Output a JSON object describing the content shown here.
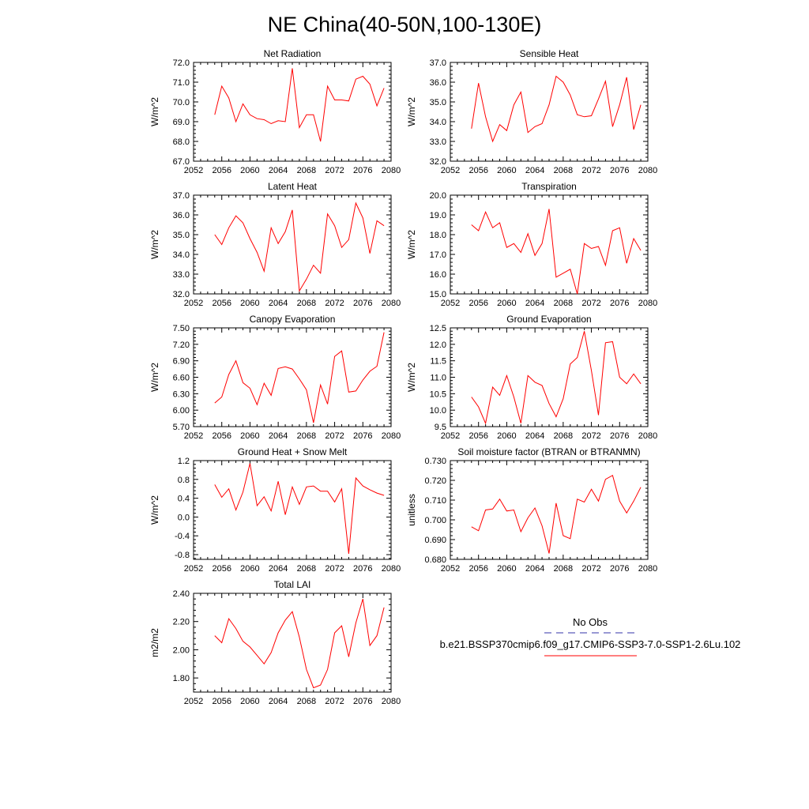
{
  "figure": {
    "title": "NE China(40-50N,100-130E)",
    "line_color": "#ff0000",
    "obs_line_color": "#3333aa"
  },
  "legend": {
    "obs_label": "No Obs",
    "run_label": "b.e21.BSSP370cmip6.f09_g17.CMIP6-SSP3-7.0-SSP1-2.6Lu.102"
  },
  "chart_data": [
    {
      "type": "line",
      "title": "Net Radiation",
      "ylabel": "W/m^2",
      "xlim": [
        2052,
        2080
      ],
      "ylim": [
        67.0,
        72.0
      ],
      "xticks": [
        2052,
        2056,
        2060,
        2064,
        2068,
        2072,
        2076,
        2080
      ],
      "yticks": [
        "67.0",
        "68.0",
        "69.0",
        "70.0",
        "71.0",
        "72.0"
      ],
      "x": [
        2055,
        2056,
        2057,
        2058,
        2059,
        2060,
        2061,
        2062,
        2063,
        2064,
        2065,
        2066,
        2067,
        2068,
        2069,
        2070,
        2071,
        2072,
        2073,
        2074,
        2075,
        2076,
        2077,
        2078,
        2079
      ],
      "series": [
        {
          "values": [
            69.35,
            70.8,
            70.2,
            69.0,
            69.9,
            69.35,
            69.15,
            69.1,
            68.9,
            69.05,
            69.0,
            71.7,
            68.7,
            69.35,
            69.35,
            68.0,
            70.8,
            70.1,
            70.1,
            70.05,
            71.15,
            71.3,
            70.9,
            69.8,
            70.7
          ]
        }
      ]
    },
    {
      "type": "line",
      "title": "Sensible Heat",
      "ylabel": "W/m^2",
      "xlim": [
        2052,
        2080
      ],
      "ylim": [
        32.0,
        37.0
      ],
      "xticks": [
        2052,
        2056,
        2060,
        2064,
        2068,
        2072,
        2076,
        2080
      ],
      "yticks": [
        "32.0",
        "33.0",
        "34.0",
        "35.0",
        "36.0",
        "37.0"
      ],
      "x": [
        2055,
        2056,
        2057,
        2058,
        2059,
        2060,
        2061,
        2062,
        2063,
        2064,
        2065,
        2066,
        2067,
        2068,
        2069,
        2070,
        2071,
        2072,
        2073,
        2074,
        2075,
        2076,
        2077,
        2078,
        2079
      ],
      "series": [
        {
          "values": [
            33.65,
            35.95,
            34.25,
            33.0,
            33.85,
            33.55,
            34.85,
            35.5,
            33.45,
            33.75,
            33.9,
            34.85,
            36.3,
            36.0,
            35.35,
            34.35,
            34.25,
            34.3,
            35.15,
            36.05,
            33.75,
            34.85,
            36.25,
            33.6,
            34.85
          ]
        }
      ]
    },
    {
      "type": "line",
      "title": "Latent Heat",
      "ylabel": "W/m^2",
      "xlim": [
        2052,
        2080
      ],
      "ylim": [
        32.0,
        37.0
      ],
      "xticks": [
        2052,
        2056,
        2060,
        2064,
        2068,
        2072,
        2076,
        2080
      ],
      "yticks": [
        "32.0",
        "33.0",
        "34.0",
        "35.0",
        "36.0",
        "37.0"
      ],
      "x": [
        2055,
        2056,
        2057,
        2058,
        2059,
        2060,
        2061,
        2062,
        2063,
        2064,
        2065,
        2066,
        2067,
        2068,
        2069,
        2070,
        2071,
        2072,
        2073,
        2074,
        2075,
        2076,
        2077,
        2078,
        2079
      ],
      "series": [
        {
          "values": [
            35.0,
            34.5,
            35.35,
            35.95,
            35.6,
            34.8,
            34.1,
            33.15,
            35.35,
            34.55,
            35.15,
            36.25,
            32.15,
            32.75,
            33.45,
            33.05,
            36.05,
            35.45,
            34.35,
            34.75,
            36.6,
            35.85,
            34.05,
            35.7,
            35.45
          ]
        }
      ]
    },
    {
      "type": "line",
      "title": "Transpiration",
      "ylabel": "W/m^2",
      "xlim": [
        2052,
        2080
      ],
      "ylim": [
        15.0,
        20.0
      ],
      "xticks": [
        2052,
        2056,
        2060,
        2064,
        2068,
        2072,
        2076,
        2080
      ],
      "yticks": [
        "15.0",
        "16.0",
        "17.0",
        "18.0",
        "19.0",
        "20.0"
      ],
      "x": [
        2055,
        2056,
        2057,
        2058,
        2059,
        2060,
        2061,
        2062,
        2063,
        2064,
        2065,
        2066,
        2067,
        2068,
        2069,
        2070,
        2071,
        2072,
        2073,
        2074,
        2075,
        2076,
        2077,
        2078,
        2079
      ],
      "series": [
        {
          "values": [
            18.5,
            18.2,
            19.15,
            18.35,
            18.6,
            17.35,
            17.55,
            17.1,
            18.05,
            16.95,
            17.55,
            19.3,
            15.85,
            16.05,
            16.25,
            15.0,
            17.55,
            17.3,
            17.4,
            16.45,
            18.2,
            18.35,
            16.55,
            17.8,
            17.2
          ]
        }
      ]
    },
    {
      "type": "line",
      "title": "Canopy Evaporation",
      "ylabel": "W/m^2",
      "xlim": [
        2052,
        2080
      ],
      "ylim": [
        5.7,
        7.5
      ],
      "xticks": [
        2052,
        2056,
        2060,
        2064,
        2068,
        2072,
        2076,
        2080
      ],
      "yticks": [
        "5.70",
        "6.00",
        "6.30",
        "6.60",
        "6.90",
        "7.20",
        "7.50"
      ],
      "x": [
        2055,
        2056,
        2057,
        2058,
        2059,
        2060,
        2061,
        2062,
        2063,
        2064,
        2065,
        2066,
        2067,
        2068,
        2069,
        2070,
        2071,
        2072,
        2073,
        2074,
        2075,
        2076,
        2077,
        2078,
        2079
      ],
      "series": [
        {
          "values": [
            6.13,
            6.24,
            6.65,
            6.9,
            6.5,
            6.4,
            6.1,
            6.49,
            6.27,
            6.76,
            6.79,
            6.75,
            6.57,
            6.37,
            5.77,
            6.46,
            6.11,
            6.98,
            7.08,
            6.33,
            6.35,
            6.55,
            6.71,
            6.8,
            7.42
          ]
        }
      ]
    },
    {
      "type": "line",
      "title": "Ground Evaporation",
      "ylabel": "W/m^2",
      "xlim": [
        2052,
        2080
      ],
      "ylim": [
        9.5,
        12.5
      ],
      "xticks": [
        2052,
        2056,
        2060,
        2064,
        2068,
        2072,
        2076,
        2080
      ],
      "yticks": [
        "9.5",
        "10.0",
        "10.5",
        "11.0",
        "11.5",
        "12.0",
        "12.5"
      ],
      "x": [
        2055,
        2056,
        2057,
        2058,
        2059,
        2060,
        2061,
        2062,
        2063,
        2064,
        2065,
        2066,
        2067,
        2068,
        2069,
        2070,
        2071,
        2072,
        2073,
        2074,
        2075,
        2076,
        2077,
        2078,
        2079
      ],
      "series": [
        {
          "values": [
            10.4,
            10.1,
            9.6,
            10.7,
            10.45,
            11.05,
            10.4,
            9.6,
            11.05,
            10.85,
            10.75,
            10.2,
            9.8,
            10.35,
            11.4,
            11.6,
            12.4,
            11.2,
            9.85,
            12.05,
            12.08,
            11.0,
            10.8,
            11.1,
            10.8
          ]
        }
      ]
    },
    {
      "type": "line",
      "title": "Ground Heat + Snow Melt",
      "ylabel": "W/m^2",
      "xlim": [
        2052,
        2080
      ],
      "ylim": [
        -0.9,
        1.2
      ],
      "xticks": [
        2052,
        2056,
        2060,
        2064,
        2068,
        2072,
        2076,
        2080
      ],
      "yticks": [
        "-0.8",
        "-0.4",
        "0.0",
        "0.4",
        "0.8",
        "1.2"
      ],
      "ytick_values": [
        -0.8,
        -0.4,
        0.0,
        0.4,
        0.8,
        1.2
      ],
      "x": [
        2055,
        2056,
        2057,
        2058,
        2059,
        2060,
        2061,
        2062,
        2063,
        2064,
        2065,
        2066,
        2067,
        2068,
        2069,
        2070,
        2071,
        2072,
        2073,
        2074,
        2075,
        2076,
        2077,
        2078,
        2079
      ],
      "series": [
        {
          "values": [
            0.69,
            0.42,
            0.6,
            0.15,
            0.53,
            1.14,
            0.24,
            0.43,
            0.13,
            0.76,
            0.05,
            0.64,
            0.27,
            0.64,
            0.66,
            0.55,
            0.55,
            0.32,
            0.6,
            -0.78,
            0.83,
            0.66,
            0.58,
            0.51,
            0.46
          ]
        }
      ]
    },
    {
      "type": "line",
      "title": "Soil moisture factor (BTRAN or BTRANMN)",
      "ylabel": "unitless",
      "xlim": [
        2052,
        2080
      ],
      "ylim": [
        0.68,
        0.73
      ],
      "xticks": [
        2052,
        2056,
        2060,
        2064,
        2068,
        2072,
        2076,
        2080
      ],
      "yticks": [
        "0.680",
        "0.690",
        "0.700",
        "0.710",
        "0.720",
        "0.730"
      ],
      "x": [
        2055,
        2056,
        2057,
        2058,
        2059,
        2060,
        2061,
        2062,
        2063,
        2064,
        2065,
        2066,
        2067,
        2068,
        2069,
        2070,
        2071,
        2072,
        2073,
        2074,
        2075,
        2076,
        2077,
        2078,
        2079
      ],
      "series": [
        {
          "values": [
            0.6965,
            0.6945,
            0.705,
            0.7055,
            0.7105,
            0.7045,
            0.705,
            0.694,
            0.701,
            0.706,
            0.697,
            0.683,
            0.7085,
            0.692,
            0.6905,
            0.7105,
            0.709,
            0.7155,
            0.7095,
            0.7205,
            0.7225,
            0.7095,
            0.7035,
            0.7095,
            0.7165
          ]
        }
      ]
    },
    {
      "type": "line",
      "title": "Total LAI",
      "ylabel": "m2/m2",
      "xlim": [
        2052,
        2080
      ],
      "ylim": [
        1.7,
        2.4
      ],
      "xticks": [
        2052,
        2056,
        2060,
        2064,
        2068,
        2072,
        2076,
        2080
      ],
      "yticks": [
        "1.80",
        "2.00",
        "2.20",
        "2.40"
      ],
      "ytick_values": [
        1.8,
        2.0,
        2.2,
        2.4
      ],
      "x": [
        2055,
        2056,
        2057,
        2058,
        2059,
        2060,
        2061,
        2062,
        2063,
        2064,
        2065,
        2066,
        2067,
        2068,
        2069,
        2070,
        2071,
        2072,
        2073,
        2074,
        2075,
        2076,
        2077,
        2078,
        2079
      ],
      "series": [
        {
          "values": [
            2.1,
            2.05,
            2.22,
            2.15,
            2.06,
            2.02,
            1.96,
            1.9,
            1.98,
            2.12,
            2.21,
            2.27,
            2.09,
            1.86,
            1.73,
            1.75,
            1.86,
            2.12,
            2.17,
            1.95,
            2.19,
            2.36,
            2.03,
            2.1,
            2.3
          ]
        }
      ]
    }
  ]
}
